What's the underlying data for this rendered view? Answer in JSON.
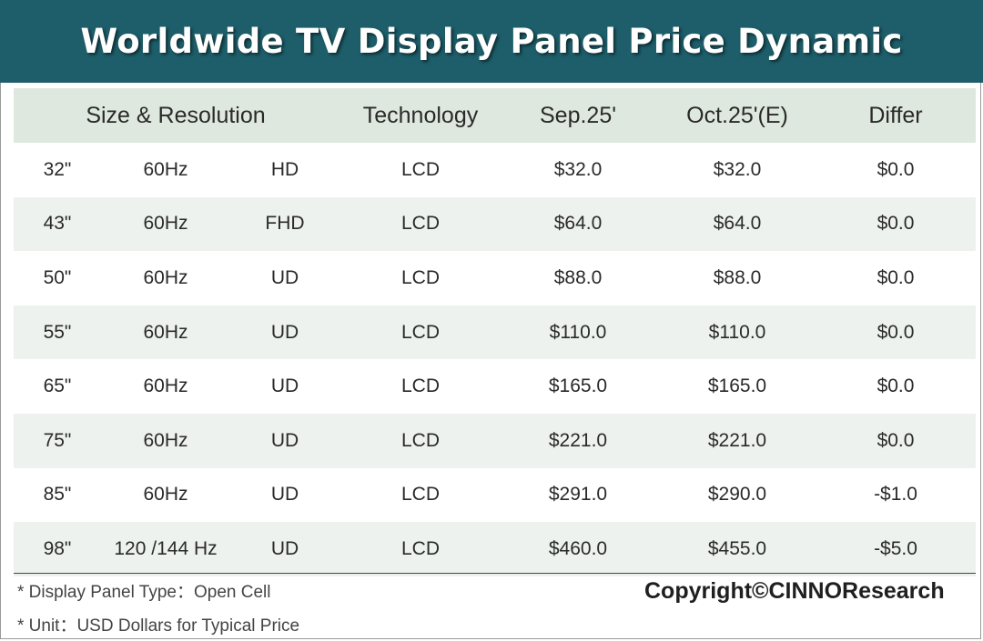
{
  "chart_data": {
    "type": "table",
    "title": "Worldwide TV Display Panel Price Dynamic",
    "columns": [
      "Size & Resolution",
      "Technology",
      "Sep.25'",
      "Oct.25'(E)",
      "Differ"
    ],
    "rows": [
      {
        "size": "32\"",
        "refresh": "60Hz",
        "resolution": "HD",
        "technology": "LCD",
        "sep25": "$32.0",
        "oct25e": "$32.0",
        "differ": "$0.0"
      },
      {
        "size": "43\"",
        "refresh": "60Hz",
        "resolution": "FHD",
        "technology": "LCD",
        "sep25": "$64.0",
        "oct25e": "$64.0",
        "differ": "$0.0"
      },
      {
        "size": "50\"",
        "refresh": "60Hz",
        "resolution": "UD",
        "technology": "LCD",
        "sep25": "$88.0",
        "oct25e": "$88.0",
        "differ": "$0.0"
      },
      {
        "size": "55\"",
        "refresh": "60Hz",
        "resolution": "UD",
        "technology": "LCD",
        "sep25": "$110.0",
        "oct25e": "$110.0",
        "differ": "$0.0"
      },
      {
        "size": "65\"",
        "refresh": "60Hz",
        "resolution": "UD",
        "technology": "LCD",
        "sep25": "$165.0",
        "oct25e": "$165.0",
        "differ": "$0.0"
      },
      {
        "size": "75\"",
        "refresh": "60Hz",
        "resolution": "UD",
        "technology": "LCD",
        "sep25": "$221.0",
        "oct25e": "$221.0",
        "differ": "$0.0"
      },
      {
        "size": "85\"",
        "refresh": "60Hz",
        "resolution": "UD",
        "technology": "LCD",
        "sep25": "$291.0",
        "oct25e": "$290.0",
        "differ": "-$1.0"
      },
      {
        "size": "98\"",
        "refresh": "120 /144 Hz",
        "resolution": "UD",
        "technology": "LCD",
        "sep25": "$460.0",
        "oct25e": "$455.0",
        "differ": "-$5.0"
      }
    ]
  },
  "footnotes": [
    "* Display Panel Type：Open Cell",
    "* Unit：USD Dollars for Typical Price"
  ],
  "copyright": "Copyright©CINNOResearch",
  "colors": {
    "title_bar": "#1d5e6a",
    "header_bg": "#dfe8de",
    "alt_row_bg": "#eef2ee"
  }
}
